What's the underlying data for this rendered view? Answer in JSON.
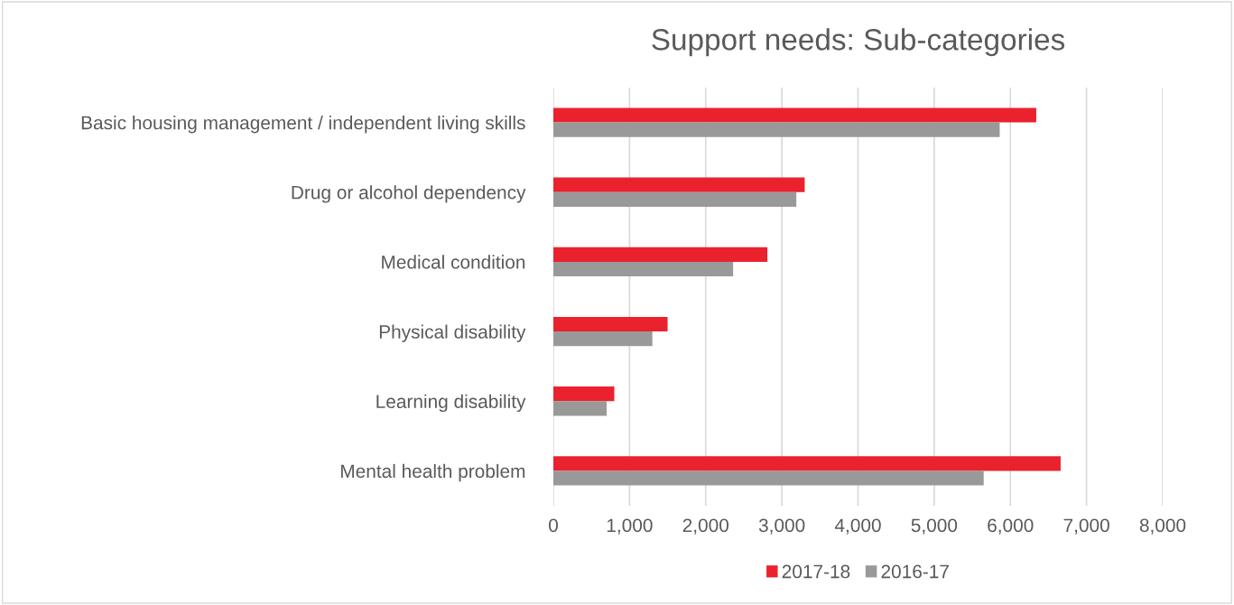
{
  "chart_data": {
    "type": "bar",
    "orientation": "horizontal",
    "title": "Support needs: Sub-categories",
    "categories": [
      "Basic housing management / independent living skills",
      "Drug or alcohol dependency",
      "Medical condition",
      "Physical disability",
      "Learning disability",
      "Mental health problem"
    ],
    "series": [
      {
        "name": "2017-18",
        "color": "#ea222e",
        "values": [
          6340,
          3300,
          2810,
          1500,
          800,
          6660
        ]
      },
      {
        "name": "2016-17",
        "color": "#999999",
        "values": [
          5860,
          3190,
          2360,
          1300,
          700,
          5650
        ]
      }
    ],
    "xlim": [
      0,
      8000
    ],
    "xticks": [
      {
        "value": 0,
        "label": "0"
      },
      {
        "value": 1000,
        "label": "1,000"
      },
      {
        "value": 2000,
        "label": "2,000"
      },
      {
        "value": 3000,
        "label": "3,000"
      },
      {
        "value": 4000,
        "label": "4,000"
      },
      {
        "value": 5000,
        "label": "5,000"
      },
      {
        "value": 6000,
        "label": "6,000"
      },
      {
        "value": 7000,
        "label": "7,000"
      },
      {
        "value": 8000,
        "label": "8,000"
      }
    ],
    "grid": "x",
    "legend": "bottom"
  }
}
